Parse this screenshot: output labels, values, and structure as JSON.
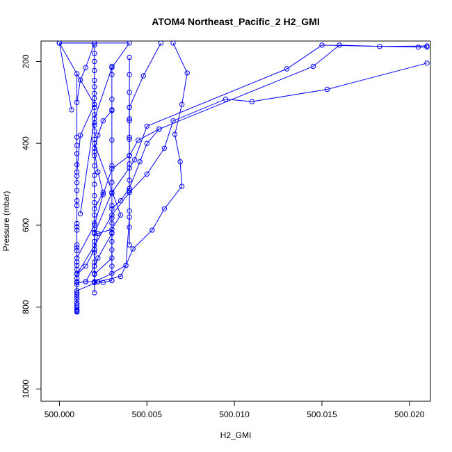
{
  "chart_data": {
    "type": "line",
    "title": "ATOM4 Northeast_Pacific_2 H2_GMI",
    "xlabel": "H2_GMI",
    "ylabel": "Pressure (mbar)",
    "xlim": [
      499.99895,
      500.0212
    ],
    "ylim": [
      1030,
      150
    ],
    "y_inverted": true,
    "x_ticks": [
      500.0,
      500.005,
      500.01,
      500.015,
      500.02
    ],
    "x_tick_labels": [
      "500.000",
      "500.005",
      "500.010",
      "500.015",
      "500.020"
    ],
    "y_ticks": [
      200,
      400,
      600,
      800,
      1000
    ],
    "y_tick_labels": [
      "200",
      "400",
      "600",
      "800",
      "1000"
    ],
    "series_color": "#0000FF",
    "marker": "open-circle",
    "grid": false,
    "series": [
      {
        "x": [
          500.021,
          500.0153,
          500.011,
          500.0095,
          500.0065,
          500.006,
          500.005,
          500.004,
          500.003,
          500.002,
          500.001,
          500.001
        ],
        "y": [
          204,
          268,
          298,
          292,
          345,
          412,
          475,
          520,
          575,
          650,
          720,
          800
        ]
      },
      {
        "x": [
          500.021,
          500.0183,
          500.016,
          500.0145,
          500.0057,
          500.0045,
          500.004,
          500.003,
          500.0025,
          500.002,
          500.001
        ],
        "y": [
          162,
          163,
          160,
          212,
          365,
          392,
          430,
          462,
          525,
          600,
          680
        ]
      },
      {
        "x": [
          500.021,
          500.0205,
          500.015,
          500.013,
          500.005,
          500.0043,
          500.004,
          500.003,
          500.002,
          500.002
        ],
        "y": [
          165,
          165,
          160,
          218,
          358,
          440,
          460,
          520,
          620,
          740
        ]
      },
      {
        "x": [
          500.0065,
          500.0073,
          500.007,
          500.0066,
          500.0069,
          500.007,
          500.006,
          500.0053,
          500.0042,
          500.0038,
          500.0035,
          500.0022,
          500.001,
          500.001
        ],
        "y": [
          155,
          228,
          305,
          378,
          445,
          505,
          560,
          612,
          658,
          698,
          725,
          738,
          760,
          810
        ]
      },
      {
        "x": [
          500.0058,
          500.0048,
          500.004,
          500.004,
          500.004,
          500.004,
          500.004,
          500.004,
          500.004,
          500.004,
          500.004
        ],
        "y": [
          155,
          235,
          312,
          340,
          390,
          430,
          460,
          515,
          565,
          605,
          648
        ]
      },
      {
        "x": [
          500.0057,
          500.005,
          500.0046,
          500.004,
          500.0035,
          500.003,
          500.003,
          500.003,
          500.003,
          500.002
        ],
        "y": [
          365,
          400,
          445,
          510,
          540,
          560,
          595,
          640,
          680,
          720
        ]
      },
      {
        "x": [
          500.004,
          500.004,
          500.004,
          500.004,
          500.004,
          500.004,
          500.004,
          500.004,
          500.004,
          500.004
        ],
        "y": [
          190,
          232,
          275,
          312,
          345,
          385,
          430,
          450,
          490,
          520
        ]
      },
      {
        "x": [
          500.003,
          500.003,
          500.003,
          500.003,
          500.003,
          500.003,
          500.003,
          500.003,
          500.003,
          500.003,
          500.003,
          500.003,
          500.003,
          500.003
        ],
        "y": [
          212,
          232,
          292,
          318,
          392,
          455,
          495,
          522,
          552,
          582,
          618,
          660,
          700,
          735
        ]
      },
      {
        "x": [
          500.003,
          500.0025,
          500.0022,
          500.002,
          500.0022,
          500.0025,
          500.002,
          500.002,
          500.002,
          500.002
        ],
        "y": [
          320,
          345,
          380,
          420,
          470,
          520,
          560,
          610,
          660,
          700
        ]
      },
      {
        "x": [
          500.002,
          500.002,
          500.002,
          500.002,
          500.002,
          500.002,
          500.002,
          500.002,
          500.002,
          500.002,
          500.002,
          500.002,
          500.002,
          500.002,
          500.002,
          500.002,
          500.002,
          500.002,
          500.002,
          500.002,
          500.002,
          500.002,
          500.002,
          500.002,
          500.002,
          500.002,
          500.002,
          500.002,
          500.002,
          500.002
        ],
        "y": [
          160,
          180,
          200,
          222,
          246,
          262,
          278,
          290,
          305,
          312,
          330,
          350,
          356,
          370,
          390,
          412,
          430,
          455,
          478,
          500,
          528,
          545,
          575,
          595,
          618,
          640,
          666,
          690,
          718,
          765
        ]
      },
      {
        "x": [
          500.001,
          500.001,
          500.001,
          500.001,
          500.001,
          500.001,
          500.001,
          500.001,
          500.001,
          500.001,
          500.001,
          500.001,
          500.001,
          500.001,
          500.001,
          500.001,
          500.001,
          500.001,
          500.001,
          500.001,
          500.001,
          500.001,
          500.001,
          500.001,
          500.001,
          500.001,
          500.001,
          500.001,
          500.001,
          500.001,
          500.001,
          500.001,
          500.001
        ],
        "y": [
          230,
          385,
          405,
          425,
          452,
          480,
          496,
          515,
          540,
          552,
          596,
          604,
          612,
          648,
          655,
          662,
          690,
          698,
          708,
          718,
          730,
          738,
          745,
          765,
          770,
          776,
          782,
          790,
          795,
          800,
          805,
          808,
          812
        ]
      },
      {
        "x": [
          500.0007,
          500.0,
          500.002,
          500.0015,
          500.0012,
          500.001
        ],
        "y": [
          318,
          155,
          155,
          215,
          245,
          300
        ]
      },
      {
        "x": [
          500.0,
          500.002,
          500.0012,
          500.001
        ],
        "y": [
          155,
          305,
          380,
          470
        ]
      },
      {
        "x": [
          500.0,
          500.004,
          500.003,
          500.002,
          500.0012
        ],
        "y": [
          155,
          155,
          215,
          340,
          572
        ]
      },
      {
        "x": [
          500.002,
          500.0035,
          500.003,
          500.0022,
          500.002,
          500.0015,
          500.001
        ],
        "y": [
          400,
          575,
          610,
          620,
          660,
          700,
          720
        ]
      },
      {
        "x": [
          500.003,
          500.0022,
          500.002,
          500.0015,
          500.001
        ],
        "y": [
          620,
          680,
          700,
          738,
          740
        ]
      },
      {
        "x": [
          500.004,
          500.0038,
          500.003,
          500.002,
          500.0015,
          500.001
        ],
        "y": [
          580,
          698,
          718,
          738,
          738,
          740
        ]
      },
      {
        "x": [
          500.003,
          500.0025,
          500.0022,
          500.002
        ],
        "y": [
          735,
          740,
          738,
          740
        ]
      }
    ]
  }
}
